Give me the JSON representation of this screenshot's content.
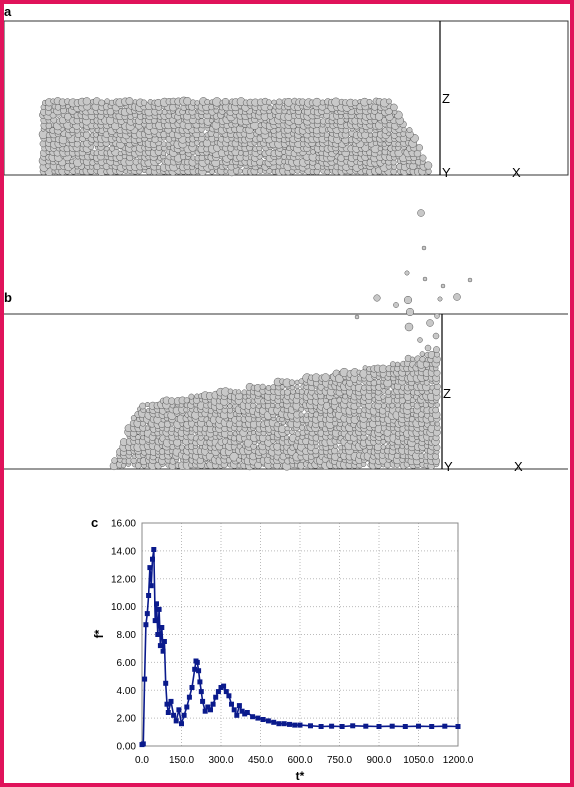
{
  "figure": {
    "panel_a": {
      "label": "a",
      "axis_labels": {
        "z": "Z",
        "y": "Y",
        "x": "X"
      }
    },
    "panel_b": {
      "label": "b",
      "axis_labels": {
        "z": "Z",
        "y": "Y",
        "x": "X"
      }
    },
    "panel_c": {
      "label": "c"
    },
    "colors": {
      "border": "#e0125a",
      "particle_fill": "#c8c8c8",
      "particle_stroke": "#555555",
      "series": "#0a1a8c"
    }
  },
  "chart_data": {
    "type": "line",
    "xlabel": "t*",
    "ylabel": "f*",
    "xlim": [
      0,
      1200
    ],
    "ylim": [
      0,
      16
    ],
    "x_ticks": [
      "0.0",
      "150.0",
      "300.0",
      "450.0",
      "600.0",
      "750.0",
      "900.0",
      "1050.0",
      "1200.0"
    ],
    "y_ticks": [
      "0.00",
      "2.00",
      "4.00",
      "6.00",
      "8.00",
      "10.00",
      "12.00",
      "14.00",
      "16.00"
    ],
    "grid": true,
    "legend": "none",
    "series": [
      {
        "marker": "square",
        "x": [
          0,
          5,
          10,
          15,
          20,
          25,
          30,
          35,
          40,
          45,
          50,
          55,
          60,
          65,
          70,
          75,
          80,
          85,
          90,
          95,
          100,
          110,
          120,
          130,
          140,
          150,
          160,
          170,
          180,
          190,
          200,
          205,
          210,
          215,
          220,
          225,
          230,
          240,
          250,
          260,
          270,
          280,
          290,
          300,
          310,
          320,
          330,
          340,
          350,
          360,
          370,
          380,
          390,
          400,
          420,
          440,
          460,
          480,
          500,
          520,
          540,
          560,
          580,
          600,
          640,
          680,
          720,
          760,
          800,
          850,
          900,
          950,
          1000,
          1050,
          1100,
          1150,
          1200
        ],
        "y": [
          0.1,
          0.15,
          4.8,
          8.7,
          9.5,
          10.8,
          12.8,
          11.5,
          13.4,
          14.1,
          9.0,
          10.2,
          8.0,
          9.8,
          7.2,
          8.5,
          6.8,
          7.5,
          4.5,
          3.0,
          2.4,
          3.2,
          2.2,
          1.8,
          2.6,
          1.6,
          2.2,
          2.8,
          3.5,
          4.2,
          5.5,
          6.1,
          6.0,
          5.4,
          4.6,
          3.9,
          3.2,
          2.5,
          2.8,
          2.6,
          3.0,
          3.5,
          3.9,
          4.2,
          4.3,
          3.9,
          3.6,
          3.0,
          2.6,
          2.2,
          2.9,
          2.5,
          2.3,
          2.4,
          2.1,
          2.0,
          1.9,
          1.8,
          1.7,
          1.6,
          1.6,
          1.55,
          1.5,
          1.5,
          1.45,
          1.4,
          1.42,
          1.4,
          1.45,
          1.42,
          1.4,
          1.42,
          1.4,
          1.42,
          1.4,
          1.42,
          1.4
        ]
      }
    ]
  }
}
